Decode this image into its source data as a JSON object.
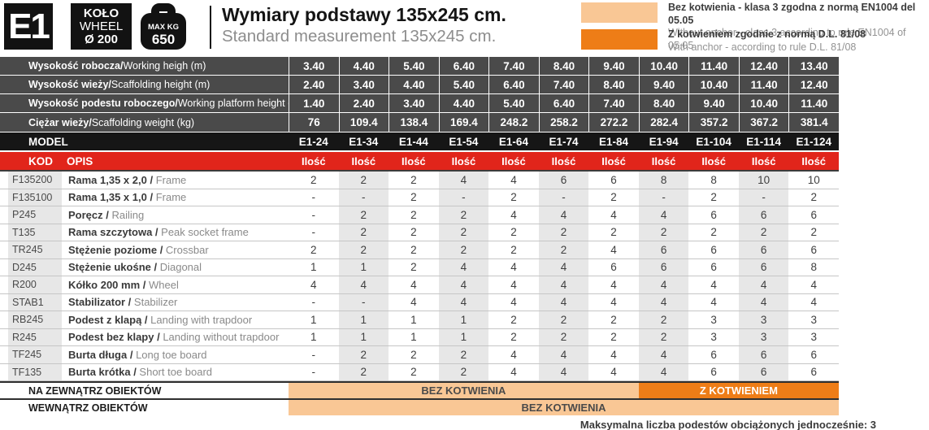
{
  "badges": {
    "model_code": "E1",
    "wheel": {
      "line1": "KOŁO",
      "line2": "WHEEL",
      "line3": "Ø 200"
    },
    "max_weight": {
      "line1": "MAX KG",
      "line2": "650"
    }
  },
  "title": {
    "pl": "Wymiary podstawy 135x245 cm.",
    "en": "Standard measurement 135x245 cm."
  },
  "legend": [
    {
      "swatch_color": "#f9c795",
      "pl": "Bez kotwienia - klasa 3 zgodna z normą EN1004 del 05.05",
      "en": "Without anchor - class 3 according to rule EN1004 of 05.05"
    },
    {
      "swatch_color": "#ee7d17",
      "pl": "Z kotwieniem zgodnie z normą D.L. 81/08",
      "en": "With anchor - according to rule D.L. 81/08"
    }
  ],
  "spec_table": {
    "rows": [
      {
        "pl": "Wysokość robocza/",
        "en": "Working heigh (m)",
        "values": [
          "3.40",
          "4.40",
          "5.40",
          "6.40",
          "7.40",
          "8.40",
          "9.40",
          "10.40",
          "11.40",
          "12.40",
          "13.40"
        ]
      },
      {
        "pl": "Wysokość wieży/",
        "en": "Scaffolding height (m)",
        "values": [
          "2.40",
          "3.40",
          "4.40",
          "5.40",
          "6.40",
          "7.40",
          "8.40",
          "9.40",
          "10.40",
          "11.40",
          "12.40"
        ]
      },
      {
        "pl": "Wysokość podestu roboczego/",
        "en": " Working platform height (m)",
        "values": [
          "1.40",
          "2.40",
          "3.40",
          "4.40",
          "5.40",
          "6.40",
          "7.40",
          "8.40",
          "9.40",
          "10.40",
          "11.40"
        ]
      },
      {
        "pl": "Ciężar wieży/",
        "en": "Scaffolding weight (kg)",
        "values": [
          "76",
          "109.4",
          "138.4",
          "169.4",
          "248.2",
          "258.2",
          "272.2",
          "282.4",
          "357.2",
          "367.2",
          "381.4"
        ]
      }
    ]
  },
  "model_row": {
    "label": "MODEL",
    "models": [
      "E1-24",
      "E1-34",
      "E1-44",
      "E1-54",
      "E1-64",
      "E1-74",
      "E1-84",
      "E1-94",
      "E1-104",
      "E1-114",
      "E1-124"
    ]
  },
  "header_row": {
    "kod": "KOD",
    "opis": "OPIS",
    "qty_label": "Ilość"
  },
  "parts": [
    {
      "code": "F135200",
      "pl": "Rama 1,35 x 2,0",
      "en": "Frame",
      "values": [
        "2",
        "2",
        "2",
        "4",
        "4",
        "6",
        "6",
        "8",
        "8",
        "10",
        "10"
      ]
    },
    {
      "code": "F135100",
      "pl": "Rama 1,35 x 1,0",
      "en": "Frame",
      "values": [
        "-",
        "-",
        "2",
        "-",
        "2",
        "-",
        "2",
        "-",
        "2",
        "-",
        "2"
      ]
    },
    {
      "code": "P245",
      "pl": "Poręcz",
      "en": "Railing",
      "values": [
        "-",
        "2",
        "2",
        "2",
        "4",
        "4",
        "4",
        "4",
        "6",
        "6",
        "6"
      ]
    },
    {
      "code": "T135",
      "pl": "Rama szczytowa",
      "en": "Peak socket frame",
      "values": [
        "-",
        "2",
        "2",
        "2",
        "2",
        "2",
        "2",
        "2",
        "2",
        "2",
        "2"
      ]
    },
    {
      "code": "TR245",
      "pl": "Stężenie poziome",
      "en": "Crossbar",
      "values": [
        "2",
        "2",
        "2",
        "2",
        "2",
        "2",
        "4",
        "6",
        "6",
        "6",
        "6"
      ]
    },
    {
      "code": "D245",
      "pl": "Stężenie ukośne",
      "en": "Diagonal",
      "values": [
        "1",
        "1",
        "2",
        "4",
        "4",
        "4",
        "6",
        "6",
        "6",
        "6",
        "8"
      ]
    },
    {
      "code": "R200",
      "pl": "Kółko 200 mm",
      "en": "Wheel",
      "values": [
        "4",
        "4",
        "4",
        "4",
        "4",
        "4",
        "4",
        "4",
        "4",
        "4",
        "4"
      ]
    },
    {
      "code": "STAB1",
      "pl": "Stabilizator",
      "en": "Stabilizer",
      "values": [
        "-",
        "-",
        "4",
        "4",
        "4",
        "4",
        "4",
        "4",
        "4",
        "4",
        "4"
      ]
    },
    {
      "code": "RB245",
      "pl": "Podest z klapą",
      "en": "Landing with trapdoor",
      "values": [
        "1",
        "1",
        "1",
        "1",
        "2",
        "2",
        "2",
        "2",
        "3",
        "3",
        "3"
      ]
    },
    {
      "code": "R245",
      "pl": "Podest bez klapy",
      "en": "Landing without trapdoor",
      "values": [
        "1",
        "1",
        "1",
        "1",
        "2",
        "2",
        "2",
        "2",
        "3",
        "3",
        "3"
      ]
    },
    {
      "code": "TF245",
      "pl": "Burta długa",
      "en": "Long toe board",
      "values": [
        "-",
        "2",
        "2",
        "2",
        "4",
        "4",
        "4",
        "4",
        "6",
        "6",
        "6"
      ]
    },
    {
      "code": "TF135",
      "pl": "Burta krótka",
      "en": "Short toe board",
      "values": [
        "-",
        "2",
        "2",
        "2",
        "4",
        "4",
        "4",
        "4",
        "6",
        "6",
        "6"
      ]
    }
  ],
  "usage_rows": [
    {
      "label": "NA ZEWNĄTRZ OBIEKTÓW",
      "segments": [
        {
          "text": "BEZ KOTWIENIA",
          "style": "without",
          "span": 7
        },
        {
          "text": "Z KOTWIENIEM",
          "style": "with",
          "span": 4
        }
      ]
    },
    {
      "label": "WEWNĄTRZ OBIEKTÓW",
      "segments": [
        {
          "text": "BEZ KOTWIENIA",
          "style": "without",
          "span": 11
        }
      ]
    }
  ],
  "footnote": "Maksymalna liczba podestów obciążonych jednocześnie: 3",
  "colors": {
    "without_anchor": "#f9c795",
    "with_anchor": "#ee7d17",
    "header_red": "#e1251b",
    "spec_gray": "#4a4a4a",
    "model_black": "#161616",
    "stripe_gray": "#e7e7e7"
  }
}
